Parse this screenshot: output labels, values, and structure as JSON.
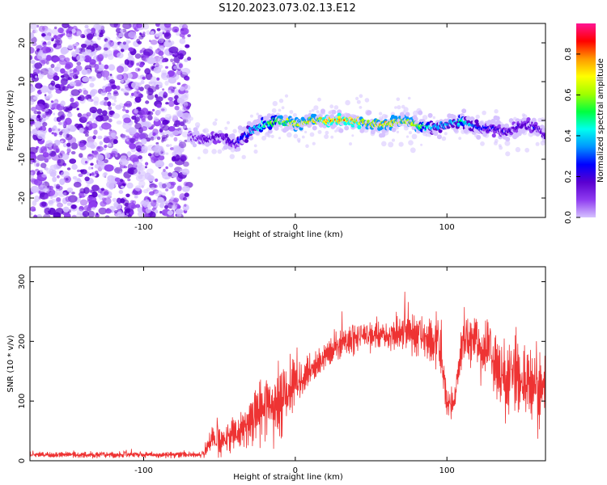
{
  "figure_title": "S120.2023.073.02.13.E12",
  "colors": {
    "snr_line": "#ee3333",
    "colormap": [
      "#ffffff",
      "#d6c2ff",
      "#8f3cf0",
      "#5a00d0",
      "#0000ff",
      "#0096ff",
      "#00ffee",
      "#00ff40",
      "#a0ff00",
      "#ffff00",
      "#ff9900",
      "#ff0000",
      "#ff1493"
    ]
  },
  "chart_data": [
    {
      "type": "heatmap",
      "xlabel": "Height of straight line (km)",
      "ylabel": "Frequency (Hz)",
      "xlim": [
        -175,
        165
      ],
      "ylim": [
        -25,
        25
      ],
      "x_ticks": [
        -100,
        0,
        100
      ],
      "x_tick_labels": [
        "-100",
        "0",
        "100"
      ],
      "y_ticks": [
        -20,
        -10,
        0,
        10,
        20
      ],
      "y_tick_labels": [
        "-20",
        "-10",
        "0",
        "10",
        "20"
      ],
      "grid": false,
      "colorbar": {
        "label": "Normalized spectral amplitude",
        "range": [
          0,
          0.95
        ],
        "ticks": [
          0.0,
          0.2,
          0.4,
          0.6,
          0.8
        ],
        "tick_labels": [
          "0.0",
          "0.2",
          "0.4",
          "0.6",
          "0.8"
        ]
      },
      "noise_region_x": [
        -175,
        -70
      ],
      "signal_ridge": {
        "x": [
          -70,
          -60,
          -50,
          -40,
          -30,
          -20,
          -10,
          0,
          10,
          20,
          30,
          40,
          50,
          60,
          70,
          80,
          90,
          100,
          110,
          120,
          130,
          140,
          150,
          160,
          165
        ],
        "freq": [
          -4,
          -5,
          -4,
          -6,
          -3,
          -1,
          0,
          -1,
          0,
          0,
          0,
          0,
          -1,
          -1,
          0,
          -1,
          -2,
          -1,
          0,
          -2,
          -2,
          -3,
          -1,
          -2,
          -4
        ],
        "peak_amplitude": [
          0.2,
          0.25,
          0.25,
          0.3,
          0.45,
          0.6,
          0.7,
          0.75,
          0.8,
          0.85,
          0.85,
          0.85,
          0.8,
          0.8,
          0.8,
          0.75,
          0.5,
          0.45,
          0.55,
          0.4,
          0.3,
          0.3,
          0.3,
          0.3,
          0.3
        ]
      }
    },
    {
      "type": "line",
      "xlabel": "Height of straight line (km)",
      "ylabel": "SNR (10 * v/v)",
      "xlim": [
        -175,
        165
      ],
      "ylim": [
        0,
        325
      ],
      "x_ticks": [
        -100,
        0,
        100
      ],
      "x_tick_labels": [
        "-100",
        "0",
        "100"
      ],
      "y_ticks": [
        0,
        100,
        200,
        300
      ],
      "y_tick_labels": [
        "0",
        "100",
        "200",
        "300"
      ],
      "grid": false,
      "series": [
        {
          "x": [
            -175,
            -160,
            -140,
            -120,
            -100,
            -80,
            -60,
            -55,
            -50,
            -40,
            -30,
            -20,
            -10,
            -5,
            0,
            10,
            20,
            30,
            40,
            50,
            60,
            70,
            80,
            90,
            95,
            100,
            105,
            110,
            115,
            120,
            130,
            140,
            150,
            160,
            165
          ],
          "mean": [
            10,
            10,
            10,
            10,
            10,
            10,
            10,
            40,
            30,
            45,
            60,
            90,
            100,
            120,
            130,
            150,
            175,
            195,
            205,
            210,
            210,
            215,
            210,
            200,
            200,
            95,
            100,
            200,
            205,
            200,
            170,
            140,
            130,
            120,
            125
          ],
          "spread": [
            5,
            5,
            5,
            5,
            5,
            5,
            5,
            20,
            25,
            30,
            45,
            60,
            65,
            60,
            40,
            25,
            25,
            25,
            25,
            25,
            25,
            30,
            35,
            40,
            60,
            25,
            25,
            35,
            45,
            50,
            60,
            65,
            70,
            70,
            60
          ]
        }
      ]
    }
  ]
}
